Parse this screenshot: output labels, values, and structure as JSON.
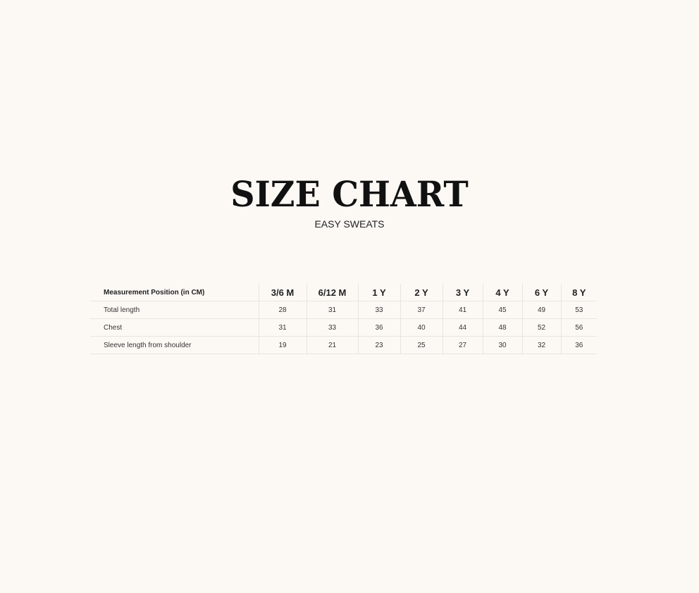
{
  "title": "SIZE CHART",
  "subtitle": "EASY SWEATS",
  "table": {
    "header_label": "Measurement Position (in CM)",
    "sizes": [
      "3/6 M",
      "6/12 M",
      "1 Y",
      "2 Y",
      "3 Y",
      "4 Y",
      "6 Y",
      "8 Y"
    ],
    "rows": [
      {
        "label": "Total length",
        "values": [
          "28",
          "31",
          "33",
          "37",
          "41",
          "45",
          "49",
          "53"
        ]
      },
      {
        "label": "Chest",
        "values": [
          "31",
          "33",
          "36",
          "40",
          "44",
          "48",
          "52",
          "56"
        ]
      },
      {
        "label": "Sleeve length from shoulder",
        "values": [
          "19",
          "21",
          "23",
          "25",
          "27",
          "30",
          "32",
          "36"
        ]
      }
    ]
  }
}
